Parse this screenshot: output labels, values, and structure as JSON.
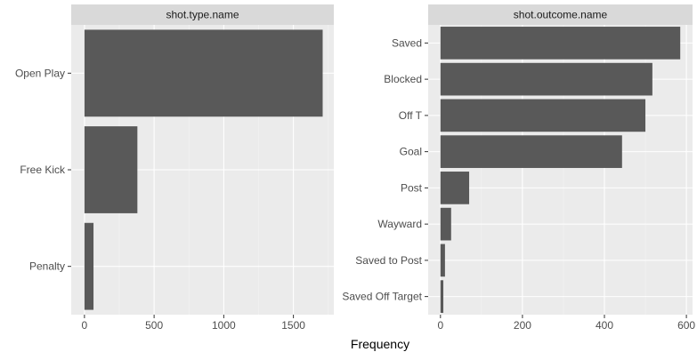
{
  "chart_data": {
    "type": "bar",
    "orientation": "horizontal",
    "xlabel": "Frequency",
    "ylabel": "",
    "grid": true,
    "bar_color": "#595959",
    "panel_background": "#ebebeb",
    "strip_background": "#d9d9d9",
    "facets": [
      {
        "strip": "shot.type.name",
        "categories": [
          "Open Play",
          "Free Kick",
          "Penalty"
        ],
        "values": [
          1710,
          380,
          65
        ],
        "xlim": [
          -95,
          1790
        ],
        "xticks": [
          0,
          500,
          1000,
          1500
        ],
        "xtick_labels": [
          "0",
          "500",
          "1000",
          "1500"
        ]
      },
      {
        "strip": "shot.outcome.name",
        "categories": [
          "Saved",
          "Blocked",
          "Off T",
          "Goal",
          "Post",
          "Wayward",
          "Saved to Post",
          "Saved Off Target"
        ],
        "values": [
          585,
          517,
          500,
          443,
          70,
          26,
          11,
          7
        ],
        "xlim": [
          -30,
          615
        ],
        "xticks": [
          0,
          200,
          400,
          600
        ],
        "xtick_labels": [
          "0",
          "200",
          "400",
          "600"
        ]
      }
    ]
  }
}
